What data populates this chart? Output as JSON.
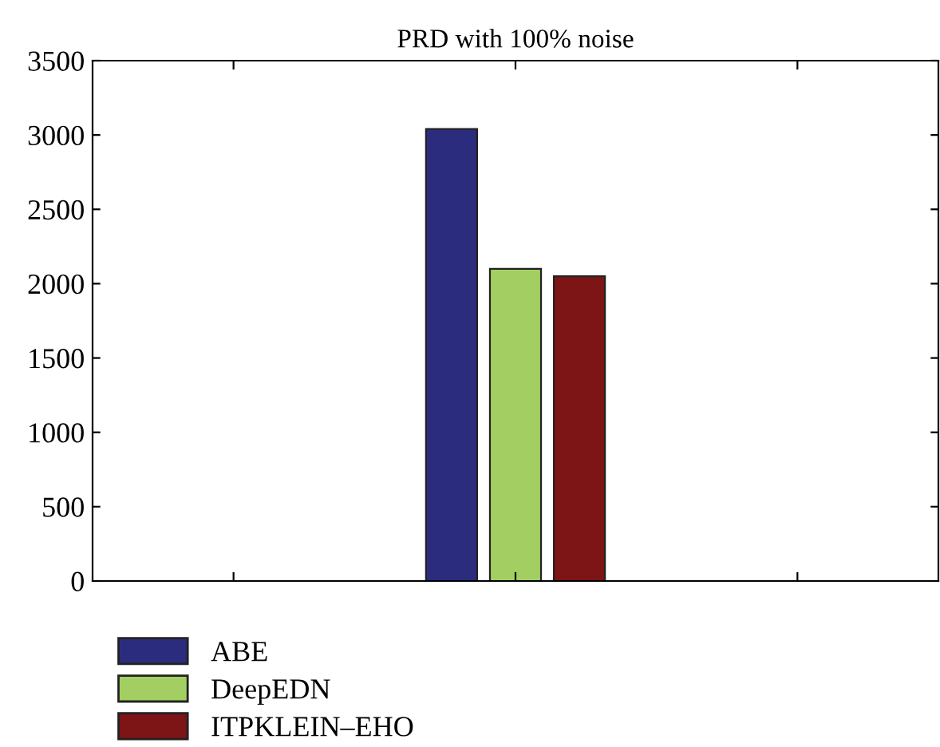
{
  "chart_data": {
    "type": "bar",
    "title": "PRD with 100% noise",
    "categories": [
      null,
      null,
      null
    ],
    "series": [
      {
        "name": "ABE",
        "color": "#2b2c7e",
        "values": [
          0,
          3040,
          0
        ]
      },
      {
        "name": "DeepEDN",
        "color": "#a3cf62",
        "values": [
          0,
          2100,
          0
        ]
      },
      {
        "name": "ITPKLEIN–EHO",
        "color": "#7d1416",
        "values": [
          null,
          2050,
          null
        ]
      }
    ],
    "ylim": [
      0,
      3500
    ],
    "yticks": [
      0,
      500,
      1000,
      1500,
      2000,
      2500,
      3000,
      3500
    ],
    "grid": false,
    "legend": "bottom left",
    "tick_labels": "y"
  }
}
